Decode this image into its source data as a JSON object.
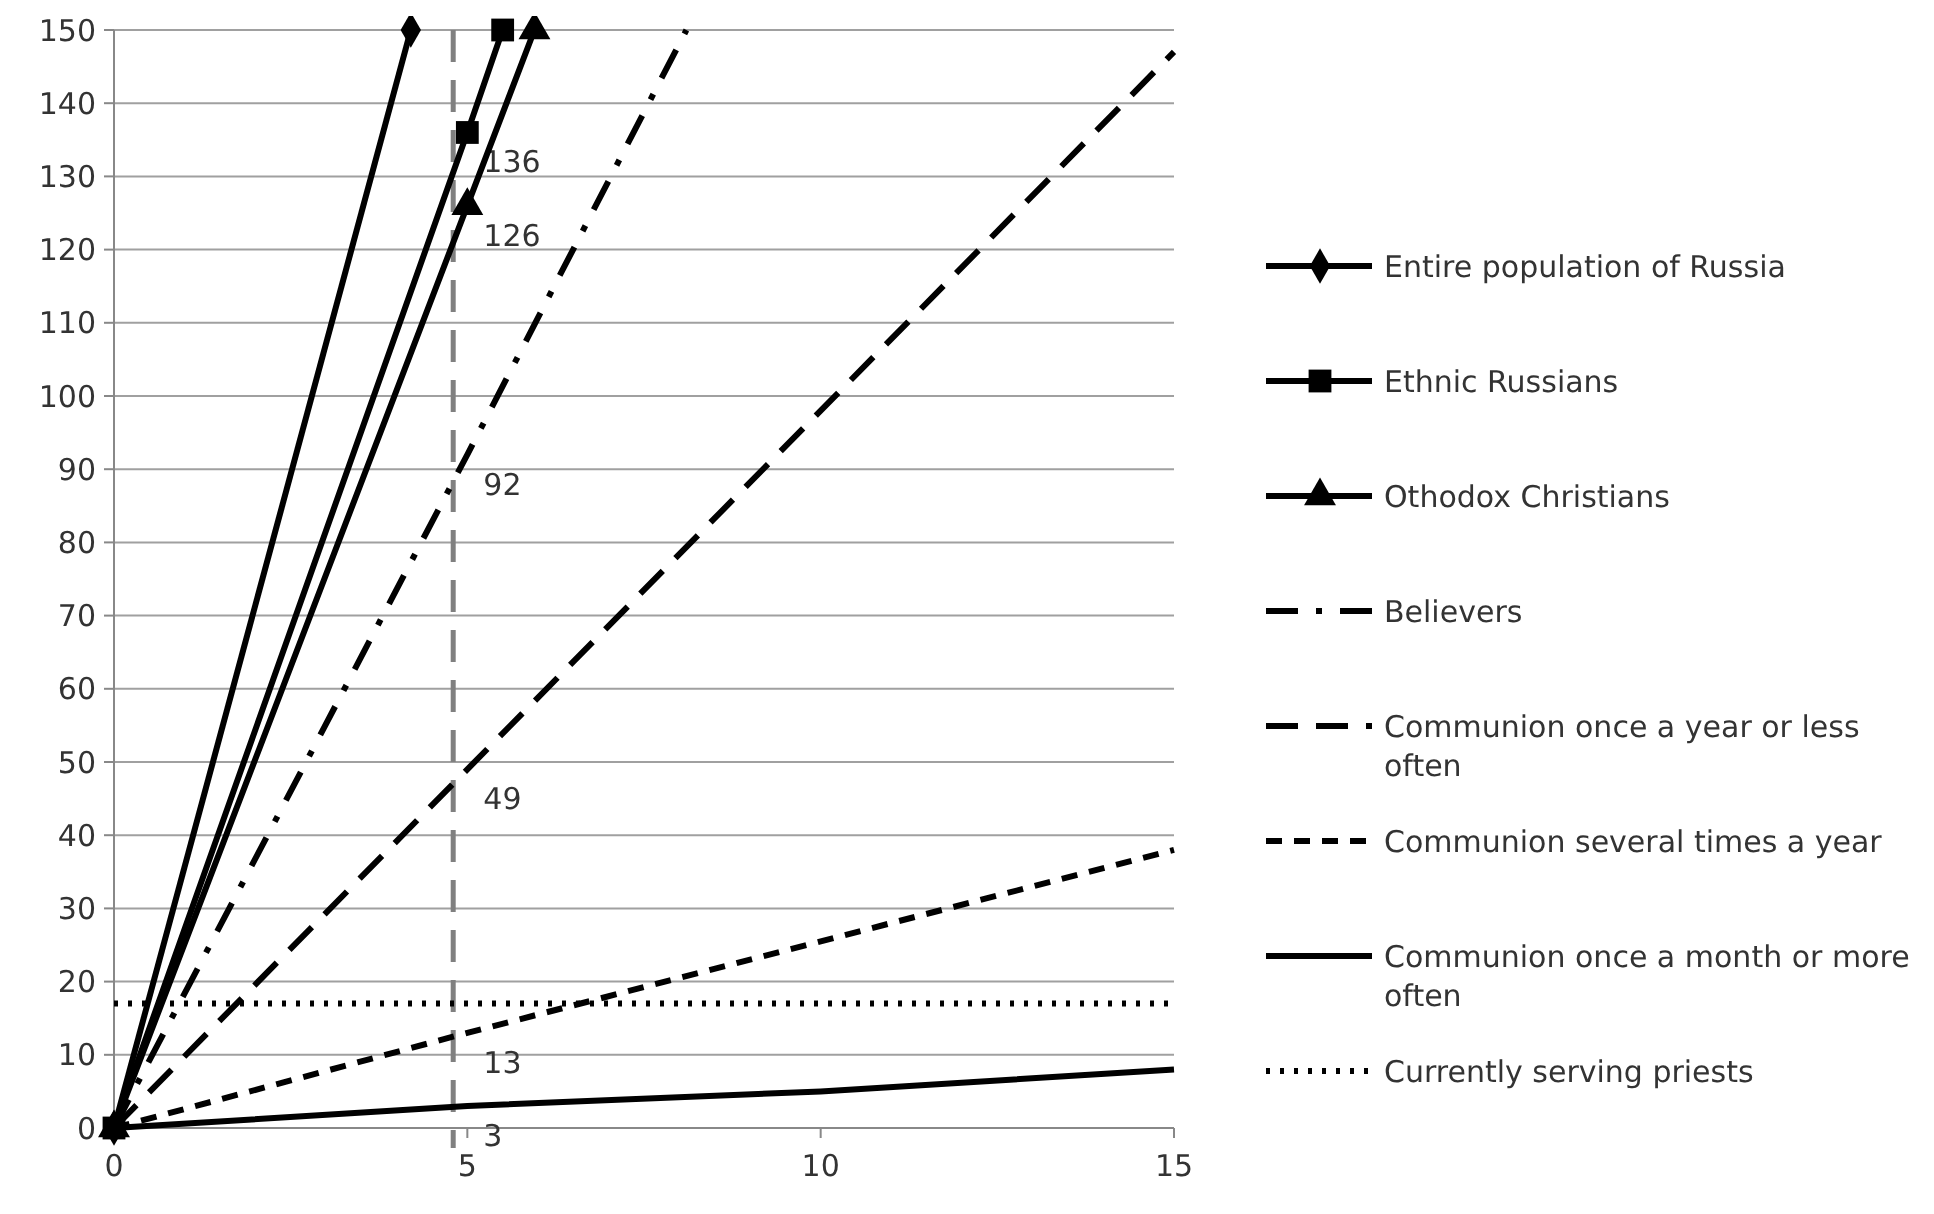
{
  "chart_data": {
    "type": "line",
    "xlim": [
      0,
      15
    ],
    "ylim": [
      0,
      150
    ],
    "xticks": [
      0,
      5,
      10,
      15
    ],
    "yticks": [
      0,
      10,
      20,
      30,
      40,
      50,
      60,
      70,
      80,
      90,
      100,
      110,
      120,
      130,
      140,
      150
    ],
    "grid": "y",
    "legend": "right",
    "ref_lines": [
      {
        "axis": "x",
        "value": 4.8,
        "color": "#808080",
        "line_style": "dashed"
      }
    ],
    "series": [
      {
        "name": "Entire population of Russia",
        "color": "#000000",
        "marker": "diamond",
        "line_style": "solid",
        "x": [
          0,
          4.2
        ],
        "values": [
          0,
          150
        ]
      },
      {
        "name": "Ethnic Russians",
        "color": "#000000",
        "marker": "square",
        "line_style": "solid",
        "x": [
          0,
          5,
          5.5
        ],
        "values": [
          0,
          136,
          150
        ],
        "value_labels": [
          null,
          "136",
          null
        ]
      },
      {
        "name": "Othodox Christians",
        "color": "#000000",
        "marker": "triangle",
        "line_style": "solid",
        "x": [
          0,
          5,
          5.95
        ],
        "values": [
          0,
          126,
          150
        ],
        "value_labels": [
          null,
          "126",
          null
        ]
      },
      {
        "name": "Believers",
        "color": "#000000",
        "marker": "none",
        "line_style": "dashdot",
        "x": [
          0,
          5,
          8.1
        ],
        "values": [
          0,
          92,
          150
        ],
        "value_labels": [
          null,
          "92",
          null
        ]
      },
      {
        "name": "Communion once a year or less often",
        "color": "#000000",
        "marker": "none",
        "line_style": "dashed",
        "x": [
          0,
          5,
          15
        ],
        "values": [
          0,
          49,
          147
        ],
        "value_labels": [
          null,
          "49",
          null
        ]
      },
      {
        "name": "Communion several times a year",
        "color": "#000000",
        "marker": "none",
        "line_style": "shortdash",
        "x": [
          0,
          5,
          15
        ],
        "values": [
          0,
          13,
          38
        ],
        "value_labels": [
          null,
          "13",
          null
        ]
      },
      {
        "name": "Communion once a month or more often",
        "color": "#000000",
        "marker": "none",
        "line_style": "solid",
        "x": [
          0,
          5,
          10,
          15
        ],
        "values": [
          0,
          3,
          5,
          8
        ],
        "value_labels": [
          null,
          "3",
          null,
          null
        ]
      },
      {
        "name": "Currently serving priests",
        "color": "#000000",
        "marker": "none",
        "line_style": "dotted",
        "x": [
          0,
          15
        ],
        "values": [
          17,
          17
        ]
      }
    ]
  }
}
